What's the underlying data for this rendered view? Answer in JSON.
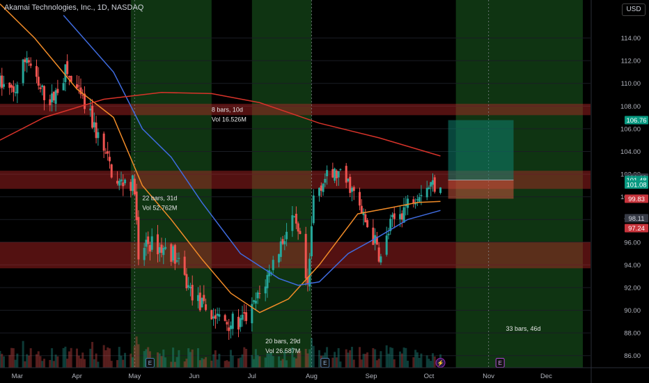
{
  "header": {
    "title": "Akamai Technologies, Inc., 1D, NASDAQ",
    "currency": "USD"
  },
  "colors": {
    "bg": "#000000",
    "up": "#26a69a",
    "down": "#ef5350",
    "sma_fast": "#f28c28",
    "sma_mid": "#3f6ce0",
    "sma_slow": "#d8332a",
    "zone": "#c62828",
    "highlight": "#1b5e20"
  },
  "chart_data": {
    "type": "candlestick",
    "timeframe": "1D",
    "ylim": [
      85,
      116
    ],
    "y_ticks": [
      86,
      88,
      90,
      92,
      94,
      96,
      98,
      100,
      102,
      104,
      106,
      108,
      110,
      112,
      114
    ],
    "x_tick_labels": [
      {
        "date": "2024-03-01",
        "label": "Mar"
      },
      {
        "date": "2024-04-01",
        "label": "Apr"
      },
      {
        "date": "2024-05-01",
        "label": "May"
      },
      {
        "date": "2024-06-01",
        "label": "Jun"
      },
      {
        "date": "2024-07-01",
        "label": "Jul"
      },
      {
        "date": "2024-08-01",
        "label": "Aug"
      },
      {
        "date": "2024-09-01",
        "label": "Sep"
      },
      {
        "date": "2024-10-01",
        "label": "Oct"
      },
      {
        "date": "2024-11-01",
        "label": "Nov"
      },
      {
        "date": "2024-12-01",
        "label": "Dec"
      }
    ],
    "x_range": [
      "2024-02-21",
      "2024-12-24"
    ],
    "last_bar_date": "2024-10-07",
    "trend_points": [
      [
        "2024-02-21",
        110
      ],
      [
        "2024-02-28",
        109
      ],
      [
        "2024-03-06",
        112.5
      ],
      [
        "2024-03-12",
        109.5
      ],
      [
        "2024-03-19",
        108.5
      ],
      [
        "2024-03-26",
        111
      ],
      [
        "2024-04-02",
        109
      ],
      [
        "2024-04-08",
        107
      ],
      [
        "2024-04-15",
        104
      ],
      [
        "2024-04-22",
        101
      ],
      [
        "2024-04-26",
        101.5
      ],
      [
        "2024-05-01",
        101
      ],
      [
        "2024-05-03",
        94
      ],
      [
        "2024-05-07",
        96
      ],
      [
        "2024-05-14",
        95.5
      ],
      [
        "2024-05-21",
        95
      ],
      [
        "2024-05-29",
        92
      ],
      [
        "2024-06-04",
        90.5
      ],
      [
        "2024-06-11",
        89.5
      ],
      [
        "2024-06-18",
        89
      ],
      [
        "2024-06-25",
        88.8
      ],
      [
        "2024-07-01",
        90
      ],
      [
        "2024-07-08",
        92.5
      ],
      [
        "2024-07-15",
        95.5
      ],
      [
        "2024-07-22",
        98
      ],
      [
        "2024-07-26",
        96
      ],
      [
        "2024-07-30",
        91.5
      ],
      [
        "2024-08-02",
        100
      ],
      [
        "2024-08-07",
        101.5
      ],
      [
        "2024-08-14",
        102
      ],
      [
        "2024-08-21",
        101
      ],
      [
        "2024-08-27",
        98.5
      ],
      [
        "2024-09-03",
        96
      ],
      [
        "2024-09-06",
        94.5
      ],
      [
        "2024-09-11",
        97.5
      ],
      [
        "2024-09-18",
        99
      ],
      [
        "2024-09-25",
        100.5
      ],
      [
        "2024-10-01",
        101
      ],
      [
        "2024-10-07",
        101.3
      ]
    ],
    "series": [
      {
        "kind": "sma_fast",
        "points": [
          [
            "2024-02-21",
            117
          ],
          [
            "2024-03-10",
            114
          ],
          [
            "2024-04-01",
            109.5
          ],
          [
            "2024-04-20",
            107
          ],
          [
            "2024-05-05",
            101
          ],
          [
            "2024-05-20",
            98
          ],
          [
            "2024-06-05",
            94.5
          ],
          [
            "2024-06-20",
            91.5
          ],
          [
            "2024-07-05",
            89.8
          ],
          [
            "2024-07-20",
            91
          ],
          [
            "2024-08-05",
            94
          ],
          [
            "2024-08-25",
            98.5
          ],
          [
            "2024-09-10",
            99
          ],
          [
            "2024-09-25",
            99.5
          ],
          [
            "2024-10-07",
            99.6
          ]
        ]
      },
      {
        "kind": "sma_mid",
        "points": [
          [
            "2024-03-25",
            116
          ],
          [
            "2024-04-20",
            111
          ],
          [
            "2024-05-05",
            106
          ],
          [
            "2024-05-20",
            103.5
          ],
          [
            "2024-06-05",
            99.5
          ],
          [
            "2024-06-25",
            95
          ],
          [
            "2024-07-15",
            92.8
          ],
          [
            "2024-07-25",
            92.2
          ],
          [
            "2024-08-05",
            92.5
          ],
          [
            "2024-08-20",
            95
          ],
          [
            "2024-09-05",
            96.5
          ],
          [
            "2024-09-20",
            98
          ],
          [
            "2024-10-07",
            98.8
          ]
        ]
      },
      {
        "kind": "sma_slow",
        "points": [
          [
            "2024-02-21",
            105
          ],
          [
            "2024-03-15",
            107
          ],
          [
            "2024-04-15",
            108.6
          ],
          [
            "2024-05-15",
            109.2
          ],
          [
            "2024-06-10",
            109.1
          ],
          [
            "2024-07-05",
            108.3
          ],
          [
            "2024-08-05",
            106.5
          ],
          [
            "2024-09-05",
            105.2
          ],
          [
            "2024-10-07",
            103.6
          ]
        ]
      }
    ],
    "zones": [
      [
        107.2,
        108.2
      ],
      [
        100.7,
        102.3
      ],
      [
        93.7,
        96.0
      ]
    ],
    "highlight_ranges": [
      [
        "2024-04-29",
        "2024-06-10"
      ],
      [
        "2024-07-01",
        "2024-08-01"
      ],
      [
        "2024-10-15",
        "2024-12-20"
      ]
    ],
    "dotted_lines": [
      "2024-05-01",
      "2024-08-01",
      "2024-11-01"
    ],
    "position_box": {
      "start": "2024-10-11",
      "end": "2024-11-14",
      "entry": 101.48,
      "target": 106.76,
      "stop": 99.83
    },
    "measurements": [
      {
        "line1": "8 bars, 10d",
        "line2": "Vol 16.526M",
        "date": "2024-06-10",
        "y": 107.5
      },
      {
        "line1": "22 bars, 31d",
        "line2": "Vol 52.762M",
        "date": "2024-05-05",
        "y": 99.7
      },
      {
        "line1": "20 bars, 29d",
        "line2": "Vol 26.587M",
        "date": "2024-07-08",
        "y": 87.1
      },
      {
        "line1": "33 bars, 46d",
        "line2": "",
        "date": "2024-11-10",
        "y": 88.2
      }
    ],
    "price_labels": [
      {
        "text": "106.76",
        "value": 106.76,
        "bg": "#089981",
        "fg": "#ffffff"
      },
      {
        "text": "101.69",
        "value": 101.69,
        "bg": "#363a45",
        "fg": "#d1d4dc"
      },
      {
        "text": "101.48",
        "value": 101.48,
        "bg": "#089981",
        "fg": "#ffffff"
      },
      {
        "text": "101.08",
        "value": 101.08,
        "bg": "#089981",
        "fg": "#ffffff"
      },
      {
        "text": "99.83",
        "value": 99.83,
        "bg": "#c8343c",
        "fg": "#ffffff"
      },
      {
        "text": "98.11",
        "value": 98.11,
        "bg": "#363a45",
        "fg": "#d1d4dc"
      },
      {
        "text": "97.24",
        "value": 97.24,
        "bg": "#c8343c",
        "fg": "#ffffff"
      }
    ],
    "event_markers": [
      {
        "date": "2024-05-09",
        "text": "E",
        "kind": "earnings-past"
      },
      {
        "date": "2024-08-08",
        "text": "E",
        "kind": "earnings-past"
      },
      {
        "date": "2024-10-07",
        "text": "⚡",
        "kind": "dividend"
      },
      {
        "date": "2024-11-07",
        "text": "E",
        "kind": "earnings-upcoming"
      }
    ]
  }
}
